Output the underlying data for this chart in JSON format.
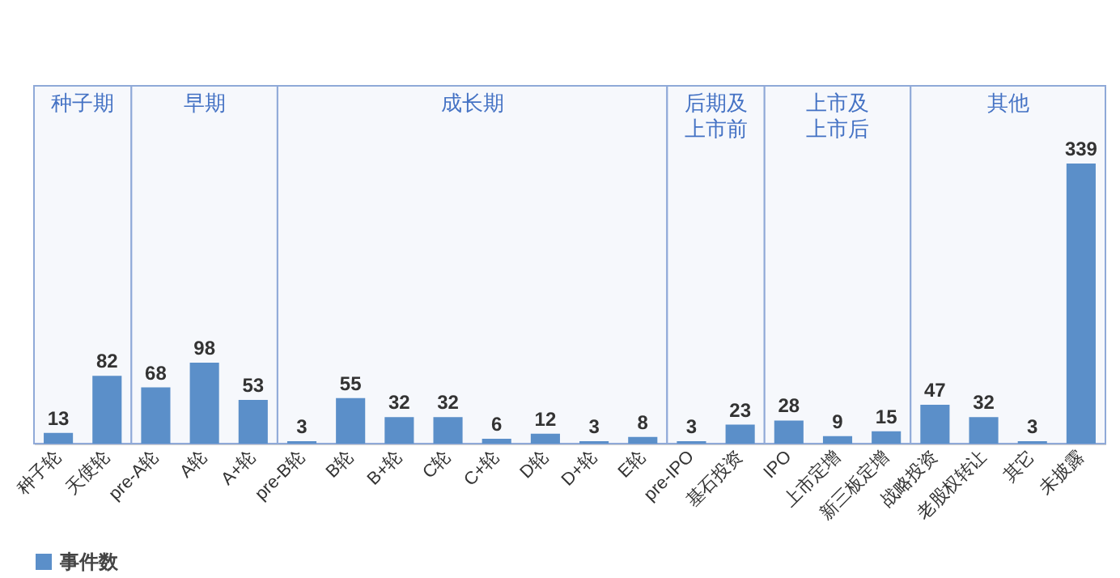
{
  "chart_data": {
    "type": "bar",
    "categories": [
      "种子轮",
      "天使轮",
      "pre-A轮",
      "A轮",
      "A+轮",
      "pre-B轮",
      "B轮",
      "B+轮",
      "C轮",
      "C+轮",
      "D轮",
      "D+轮",
      "E轮",
      "pre-IPO",
      "基石投资",
      "IPO",
      "上市定增",
      "新三板定增",
      "战略投资",
      "老股权转让",
      "其它",
      "未披露"
    ],
    "series": [
      {
        "name": "事件数",
        "color": "#5b8fc9",
        "values": [
          13,
          82,
          68,
          98,
          53,
          3,
          55,
          32,
          32,
          6,
          12,
          3,
          8,
          3,
          23,
          28,
          9,
          15,
          47,
          32,
          3,
          339
        ]
      }
    ],
    "data_labels": true,
    "bands": [
      {
        "axis": "x",
        "from": "种子轮",
        "to": "天使轮",
        "label": "种子期",
        "color": "#f6f8fc"
      },
      {
        "axis": "x",
        "from": "pre-A轮",
        "to": "A+轮",
        "label": "早期",
        "color": "#f6f8fc"
      },
      {
        "axis": "x",
        "from": "pre-B轮",
        "to": "E轮",
        "label": "成长期",
        "color": "#f6f8fc"
      },
      {
        "axis": "x",
        "from": "pre-IPO",
        "to": "基石投资",
        "label": "后期及上市前",
        "color": "#f6f8fc"
      },
      {
        "axis": "x",
        "from": "IPO",
        "to": "新三板定增",
        "label": "上市及上市后",
        "color": "#f6f8fc"
      },
      {
        "axis": "x",
        "from": "战略投资",
        "to": "未披露",
        "label": "其他",
        "color": "#f6f8fc"
      }
    ],
    "legend": "bottom"
  }
}
